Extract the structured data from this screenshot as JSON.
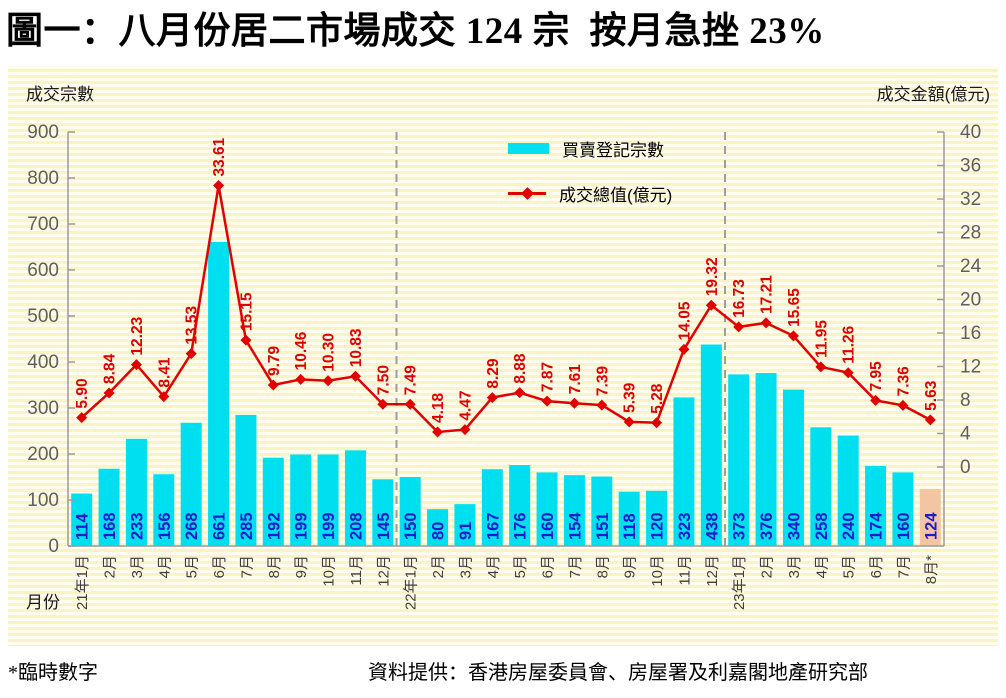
{
  "title": "圖一：八月份居二市場成交 124 宗  按月急挫 23%",
  "panel": {
    "left_axis_title": "成交宗數",
    "right_axis_title": "成交金額(億元)",
    "x_axis_title": "月份"
  },
  "footnote": "*臨時數字",
  "source": "資料提供：香港房屋委員會、房屋署及利嘉閣地產研究部",
  "colors": {
    "bar": "#00dfef",
    "bar_highlight": "#f3c5a3",
    "bar_label": "#1c1ccd",
    "line": "#e10000",
    "line_label": "#dd0000",
    "axis": "#9a9a9a",
    "tick_label": "#5f5f5f",
    "month_label": "#3f3f3f",
    "separator": "#9e9e9e"
  },
  "chart_data": {
    "type": "bar+line",
    "title": "圖一：八月份居二市場成交 124 宗  按月急挫 23%",
    "categories": [
      "21年1月",
      "2月",
      "3月",
      "4月",
      "5月",
      "6月",
      "7月",
      "8月",
      "9月",
      "10月",
      "11月",
      "12月",
      "22年1月",
      "2月",
      "3月",
      "4月",
      "5月",
      "6月",
      "7月",
      "8月",
      "9月",
      "10月",
      "11月",
      "12月",
      "23年1月",
      "2月",
      "3月",
      "4月",
      "5月",
      "6月",
      "7月",
      "8月*"
    ],
    "series": [
      {
        "name": "買賣登記宗數",
        "type": "bar",
        "axis": "left",
        "values": [
          114,
          168,
          233,
          156,
          268,
          661,
          285,
          192,
          199,
          199,
          208,
          145,
          150,
          80,
          91,
          167,
          176,
          160,
          154,
          151,
          118,
          120,
          323,
          438,
          373,
          376,
          340,
          258,
          240,
          174,
          160,
          124
        ]
      },
      {
        "name": "成交總值(億元)",
        "type": "line",
        "axis": "right",
        "values": [
          5.9,
          8.84,
          12.23,
          8.41,
          13.53,
          33.61,
          15.15,
          9.79,
          10.46,
          10.3,
          10.83,
          7.5,
          7.49,
          4.18,
          4.47,
          8.29,
          8.88,
          7.87,
          7.61,
          7.39,
          5.39,
          5.28,
          14.05,
          19.32,
          16.73,
          17.21,
          15.65,
          11.95,
          11.26,
          7.95,
          7.36,
          5.63
        ],
        "labels": [
          "5.90",
          "8.84",
          "12.23",
          "8.41",
          "13.53",
          "33.61",
          "15.15",
          "9.79",
          "10.46",
          "10.30",
          "10.83",
          "7.50",
          "7.49",
          "4.18",
          "4.47",
          "8.29",
          "8.88",
          "7.87",
          "7.61",
          "7.39",
          "5.39",
          "5.28",
          "14.05",
          "19.32",
          "16.73",
          "17.21",
          "15.65",
          "11.95",
          "11.26",
          "7.95",
          "7.36",
          "5.63"
        ]
      }
    ],
    "left_axis": {
      "label": "成交宗數",
      "min": 0,
      "max": 900,
      "tick_step": 100,
      "ticks": [
        0,
        100,
        200,
        300,
        400,
        500,
        600,
        700,
        800,
        900
      ]
    },
    "right_axis": {
      "label": "成交金額(億元)",
      "min": 0,
      "max": 40,
      "tick_step": 4,
      "ticks": [
        0,
        4,
        8,
        12,
        16,
        20,
        24,
        28,
        32,
        36,
        40
      ]
    },
    "x_axis_label": "月份",
    "separators_after_index": [
      11,
      23
    ],
    "highlight_index": 31,
    "legend": [
      "買賣登記宗數",
      "成交總值(億元)"
    ],
    "legend_position": "inside-top, right of center",
    "grid": "horizontal pale-yellow stripes background, no gridlines"
  }
}
